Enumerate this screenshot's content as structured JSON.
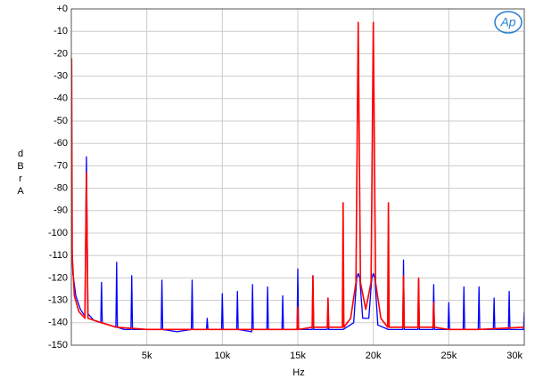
{
  "chart_data": {
    "type": "line",
    "logo": "Ap",
    "x_label": "Hz",
    "y_label": "dBr A",
    "xlim": [
      0,
      30000
    ],
    "ylim": [
      -150,
      0
    ],
    "xticks": [
      {
        "value": 5000,
        "label": "5k"
      },
      {
        "value": 10000,
        "label": "10k"
      },
      {
        "value": 15000,
        "label": "15k"
      },
      {
        "value": 20000,
        "label": "20k"
      },
      {
        "value": 25000,
        "label": "25k"
      },
      {
        "value": 30000,
        "label": "30k"
      }
    ],
    "yticks": [
      {
        "value": 0,
        "label": "+0"
      },
      -10,
      -20,
      -30,
      -40,
      -50,
      -60,
      -70,
      -80,
      -90,
      -100,
      -110,
      -120,
      -130,
      -140,
      -150
    ],
    "grid": true,
    "series": [
      {
        "color": "#0000ff",
        "x": [
          20,
          100,
          300,
          600,
          900,
          1000,
          1100,
          1500,
          1950,
          2000,
          2050,
          2500,
          2950,
          3000,
          3050,
          3500,
          3950,
          4000,
          4050,
          5000,
          5950,
          6000,
          6050,
          7000,
          7950,
          8000,
          8050,
          8950,
          9000,
          9050,
          9950,
          10000,
          10050,
          10950,
          11000,
          11050,
          11950,
          12000,
          12050,
          12950,
          13000,
          13050,
          13950,
          14000,
          14050,
          14950,
          15000,
          15050,
          15950,
          16000,
          16050,
          16950,
          17000,
          17050,
          18000,
          18700,
          18900,
          19000,
          19100,
          19300,
          19700,
          19900,
          20000,
          20100,
          20300,
          21000,
          21950,
          22000,
          22050,
          22950,
          23000,
          23050,
          23950,
          24000,
          24050,
          24950,
          25000,
          25050,
          25950,
          26000,
          26050,
          26950,
          27000,
          27050,
          27950,
          28000,
          28050,
          28950,
          29000,
          29050,
          29950,
          30000
        ],
        "values": [
          -100,
          -118,
          -128,
          -134,
          -137,
          -66,
          -136,
          -139,
          -140,
          -122,
          -140,
          -141,
          -142,
          -113,
          -142,
          -143,
          -143,
          -119,
          -143,
          -143,
          -143,
          -121,
          -143,
          -144,
          -143,
          -121,
          -143,
          -143,
          -138,
          -143,
          -143,
          -127,
          -143,
          -143,
          -126,
          -143,
          -144,
          -123,
          -143,
          -143,
          -124,
          -143,
          -143,
          -128,
          -143,
          -143,
          -116,
          -143,
          -143,
          -119,
          -143,
          -143,
          -131,
          -143,
          -143,
          -140,
          -120,
          -118,
          -120,
          -138,
          -138,
          -120,
          -118,
          -120,
          -141,
          -143,
          -143,
          -112,
          -143,
          -143,
          -121,
          -143,
          -143,
          -123,
          -143,
          -143,
          -131,
          -143,
          -143,
          -124,
          -143,
          -143,
          -124,
          -143,
          -143,
          -129,
          -143,
          -143,
          -126,
          -143,
          -143,
          -135
        ]
      },
      {
        "color": "#ff0000",
        "x": [
          20,
          60,
          200,
          500,
          900,
          1000,
          1100,
          2000,
          3000,
          5000,
          8000,
          11000,
          14950,
          15000,
          15050,
          15950,
          16000,
          16050,
          16950,
          17000,
          17050,
          17950,
          18000,
          18050,
          18500,
          18850,
          19000,
          19150,
          19500,
          19850,
          20000,
          20150,
          20500,
          20950,
          21000,
          21050,
          21950,
          22000,
          22050,
          22950,
          23000,
          23050,
          23950,
          24000,
          24050,
          25000,
          27000,
          30000
        ],
        "values": [
          -22,
          -110,
          -128,
          -135,
          -138,
          -73,
          -138,
          -140,
          -142,
          -143,
          -143,
          -143,
          -143,
          -133,
          -143,
          -142,
          -119,
          -142,
          -142,
          -129,
          -142,
          -142,
          -86.5,
          -142,
          -138,
          -122,
          -6,
          -122,
          -134,
          -122,
          -6,
          -122,
          -138,
          -142,
          -86.5,
          -142,
          -142,
          -119,
          -142,
          -142,
          -120,
          -142,
          -142,
          -131,
          -142,
          -143,
          -143,
          -142
        ]
      }
    ]
  }
}
